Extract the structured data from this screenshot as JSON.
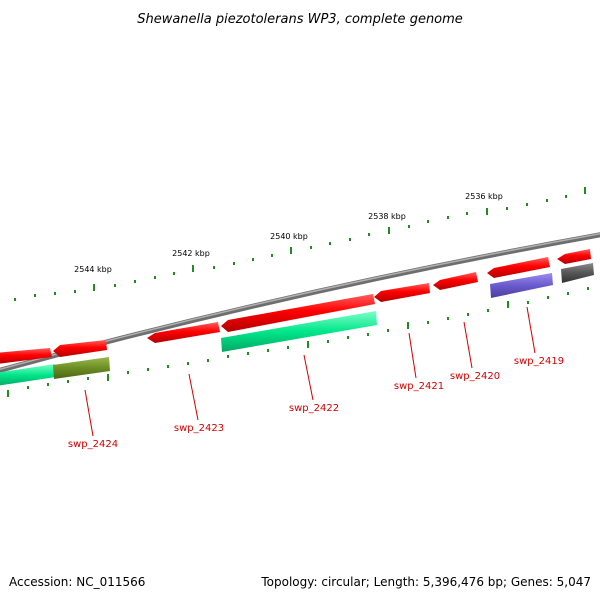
{
  "title": "Shewanella piezotolerans WP3, complete genome",
  "footer": {
    "accession": "Accession: NC_011566",
    "summary": "Topology: circular; Length: 5,396,476 bp; Genes: 5,047"
  },
  "scale_labels": [
    "2544 kbp",
    "2542 kbp",
    "2540 kbp",
    "2538 kbp",
    "2536 kbp"
  ],
  "gene_labels": [
    "swp_2424",
    "swp_2423",
    "swp_2422",
    "swp_2421",
    "swp_2420",
    "swp_2419"
  ],
  "colors": {
    "cds": "#ff0000",
    "green_feature": "#00e68a",
    "olive_feature": "#6b8e23",
    "purple_feature": "#6a5acd",
    "gray_feature": "#555555",
    "backbone": "#7f7f7f",
    "ticks": "#228b22",
    "label": "#d40000"
  }
}
